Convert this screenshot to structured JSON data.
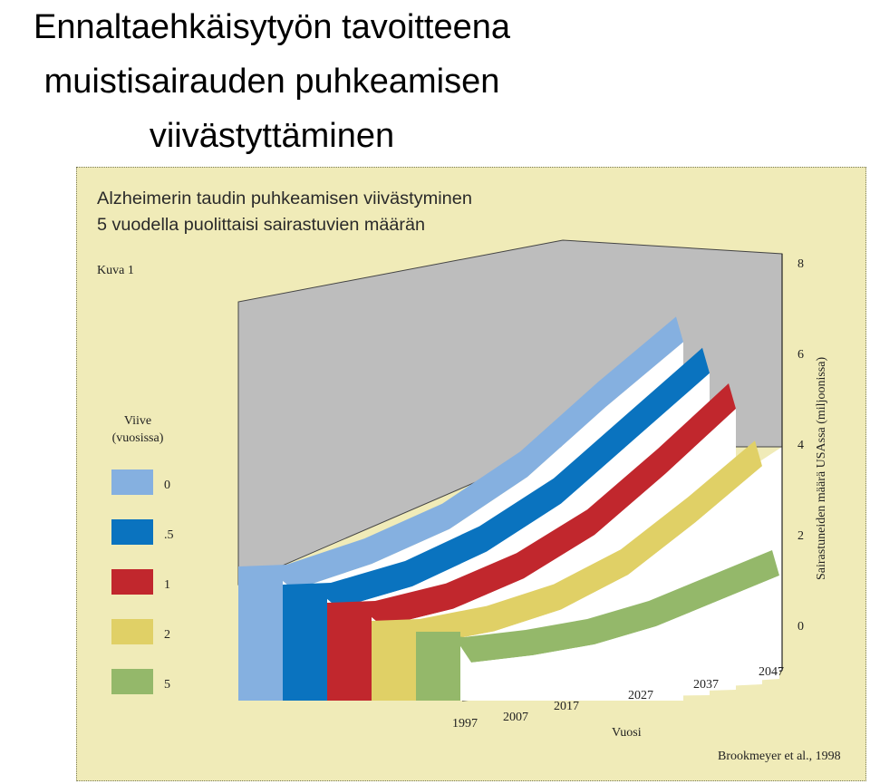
{
  "slide": {
    "title_lines": [
      "Ennaltaehkäisytyön tavoitteena",
      "muistisairauden puhkeamisen",
      "viivästyttäminen"
    ]
  },
  "figure": {
    "label": "Kuva 1",
    "credit": "Brookmeyer et al., 1998"
  },
  "chart_data": {
    "type": "area",
    "title_lines": [
      "Alzheimerin taudin puhkeamisen viivästyminen",
      "5 vuodella puolittaisi sairastuvien määrän"
    ],
    "xlabel": "Vuosi",
    "ylabel": "Sairastuneiden määrä USAssa (miljoonissa)",
    "x": [
      "1997",
      "2007",
      "2017",
      "2027",
      "2037",
      "2047"
    ],
    "y_ticks": [
      "0",
      "2",
      "4",
      "6",
      "8"
    ],
    "ylim": [
      0,
      8
    ],
    "legend_title_lines": [
      "Viive",
      "(vuosissa)"
    ],
    "series": [
      {
        "name": "0",
        "color": "#85b0e0",
        "values": [
          2.3,
          2.9,
          3.7,
          4.9,
          6.5,
          8.0
        ]
      },
      {
        "name": ".5",
        "color": "#0a73bf",
        "values": [
          2.2,
          2.7,
          3.5,
          4.6,
          6.1,
          7.6
        ]
      },
      {
        "name": "1",
        "color": "#c1272d",
        "values": [
          2.1,
          2.5,
          3.2,
          4.2,
          5.6,
          7.1
        ]
      },
      {
        "name": "2",
        "color": "#e0d066",
        "values": [
          2.0,
          2.3,
          2.8,
          3.6,
          4.8,
          6.1
        ]
      },
      {
        "name": "5",
        "color": "#94b86a",
        "values": [
          1.6,
          1.8,
          2.1,
          2.6,
          3.3,
          4.0
        ]
      }
    ]
  }
}
